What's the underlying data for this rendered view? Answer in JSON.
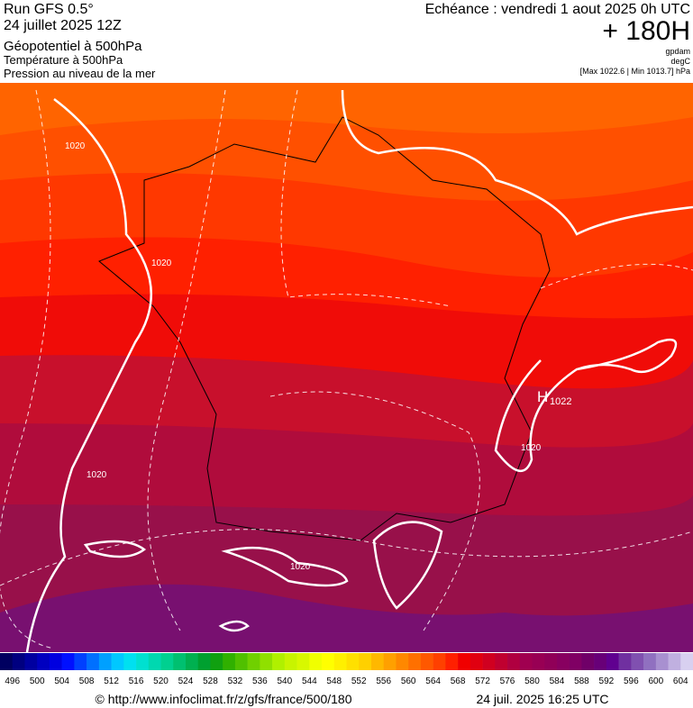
{
  "header": {
    "run": "Run GFS 0.5°",
    "date": "24 juillet 2025 12Z",
    "field1": "Géopotentiel à 500hPa",
    "field2": "Température à 500hPa",
    "field3": "Pression au niveau de la mer",
    "echeance": "Echéance : vendredi 1 aout 2025 0h UTC",
    "lead": "+ 180H",
    "unit1": "gpdam",
    "unit2": "degC",
    "range": "[Max 1022.6 | Min 1013.7] hPa"
  },
  "map": {
    "labels": [
      "1020",
      "1020",
      "1020",
      "1020",
      "1020"
    ],
    "high": {
      "symbol": "H",
      "value": "1022"
    }
  },
  "colorbar": {
    "labels": [
      496,
      500,
      504,
      508,
      512,
      516,
      520,
      524,
      528,
      532,
      536,
      540,
      544,
      548,
      552,
      556,
      560,
      564,
      568,
      572,
      576,
      580,
      584,
      588,
      592,
      596,
      600,
      604
    ],
    "colors": [
      "#000060",
      "#000080",
      "#0000a0",
      "#0000c0",
      "#0000e0",
      "#0010ff",
      "#0040ff",
      "#0070ff",
      "#00a0ff",
      "#00c8ff",
      "#00e0f0",
      "#00e0d0",
      "#00d8b0",
      "#00d090",
      "#00c070",
      "#00b050",
      "#00a030",
      "#10a010",
      "#30b000",
      "#50c000",
      "#70d000",
      "#90e000",
      "#b0f000",
      "#c8f400",
      "#d8f800",
      "#f0ff00",
      "#ffff00",
      "#fff000",
      "#ffe000",
      "#ffd000",
      "#ffb800",
      "#ffa000",
      "#ff8800",
      "#ff7000",
      "#ff5800",
      "#ff4000",
      "#ff2000",
      "#f00000",
      "#e00010",
      "#d00020",
      "#c00030",
      "#b00040",
      "#a00050",
      "#980054",
      "#900058",
      "#880060",
      "#800064",
      "#700068",
      "#680078",
      "#600090",
      "#7030a0",
      "#8050b0",
      "#9070c0",
      "#a890d0",
      "#c0b0e0",
      "#d8d0f0"
    ]
  },
  "footer": {
    "url": "© http://www.infoclimat.fr/z/gfs/france/500/180",
    "stamp": "24 juil. 2025 16:25 UTC"
  }
}
